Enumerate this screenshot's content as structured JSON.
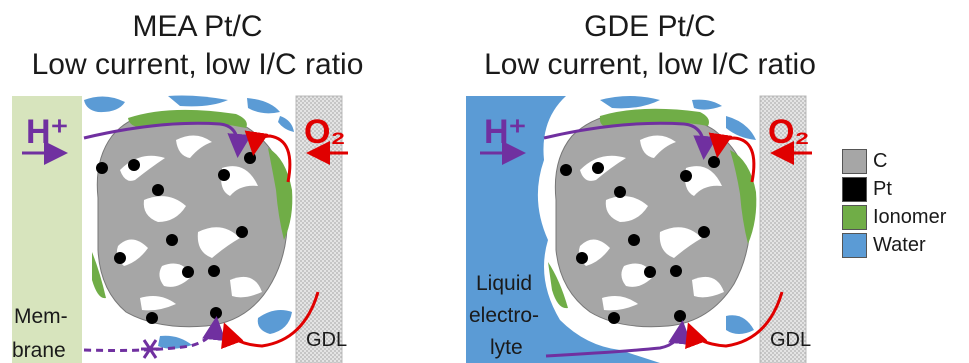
{
  "panels": [
    {
      "title_line1": "MEA Pt/C",
      "title_line2": "Low current, low I/C ratio",
      "left_label": "H⁺",
      "right_label": "O₂",
      "gdl_label": "GDL",
      "electrolyte_label": [
        "Mem-",
        "brane"
      ]
    },
    {
      "title_line1": "GDE Pt/C",
      "title_line2": "Low current, low I/C ratio",
      "left_label": "H⁺",
      "right_label": "O₂",
      "gdl_label": "GDL",
      "electrolyte_label": [
        "Liquid",
        "electro-",
        "lyte"
      ]
    }
  ],
  "legend": [
    {
      "label": "C",
      "color": "#a6a6a6"
    },
    {
      "label": "Pt",
      "color": "#000000"
    },
    {
      "label": "Ionomer",
      "color": "#70ad47"
    },
    {
      "label": "Water",
      "color": "#5b9bd5"
    }
  ],
  "colors": {
    "membrane": "#d7e4bd",
    "liquid": "#5b9bd5",
    "proton": "#7030a0",
    "oxygen": "#e00000",
    "gdl": "#d0d0d0"
  }
}
